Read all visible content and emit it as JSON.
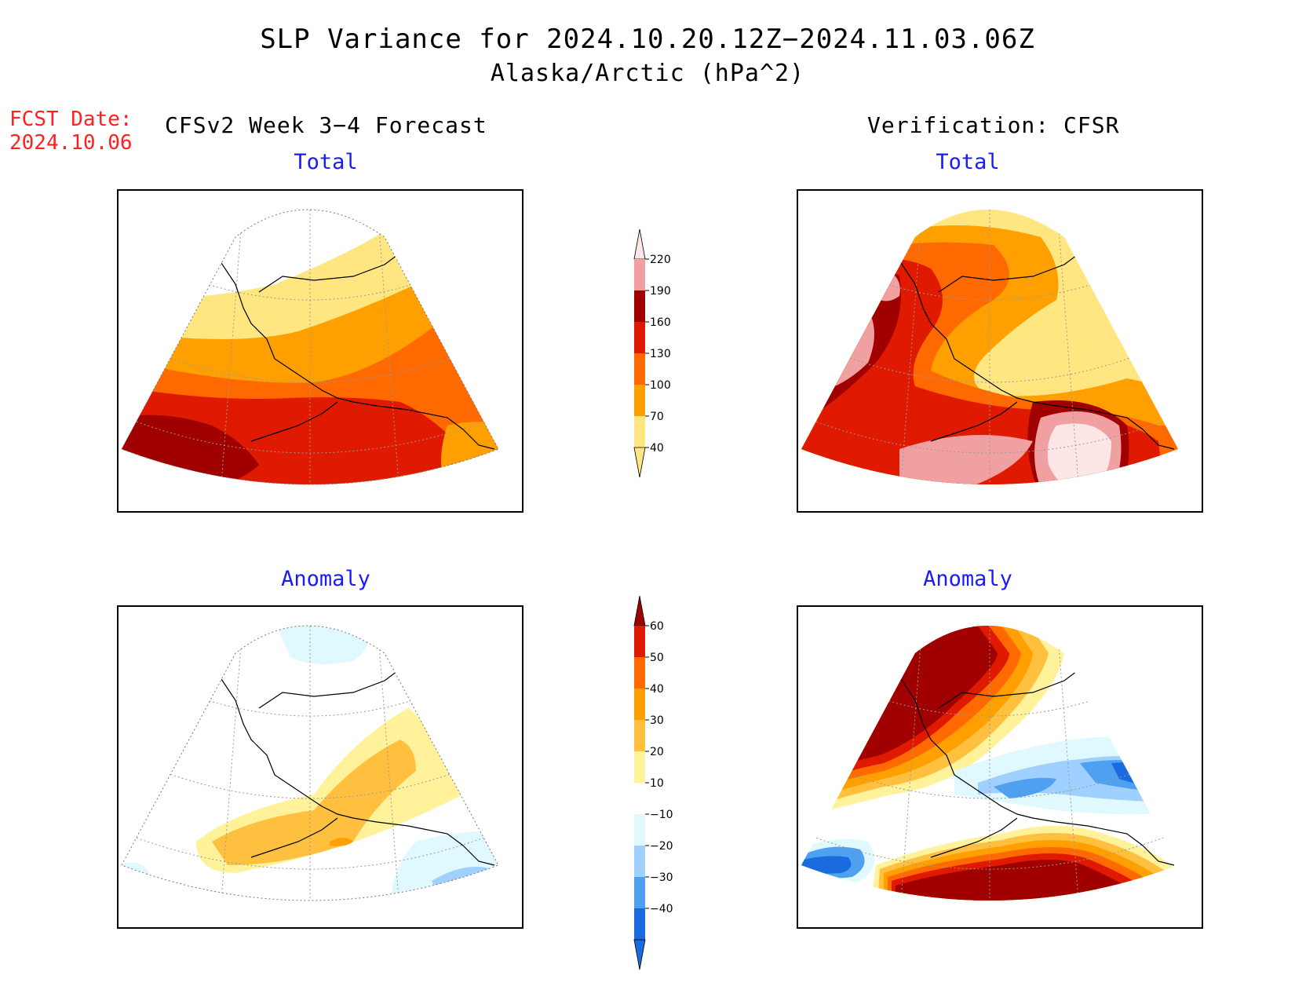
{
  "title": "SLP Variance for 2024.10.20.12Z−2024.11.03.06Z",
  "subtitle": "Alaska/Arctic (hPa^2)",
  "fcst": {
    "label": "FCST Date:",
    "date": "2024.10.06"
  },
  "columns": {
    "left": "CFSv2 Week 3−4 Forecast",
    "right": "Verification: CFSR"
  },
  "panels": {
    "forecast_total": {
      "title": "Total"
    },
    "verification_total": {
      "title": "Total"
    },
    "forecast_anomaly": {
      "title": "Anomaly"
    },
    "verification_anomaly": {
      "title": "Anomaly"
    }
  },
  "colorbars": {
    "total": {
      "levels": [
        "220",
        "190",
        "160",
        "130",
        "100",
        "70",
        "40"
      ],
      "colors": [
        "#fde6e6",
        "#f0a0a0",
        "#a00000",
        "#e01a00",
        "#ff6a00",
        "#ffa000",
        "#ffe680"
      ]
    },
    "anomaly": {
      "levels": [
        "60",
        "50",
        "40",
        "30",
        "20",
        "10",
        "−10",
        "−20",
        "−30",
        "−40"
      ],
      "colors": [
        "#a00000",
        "#e01a00",
        "#ff6a00",
        "#ffa000",
        "#ffc040",
        "#fff29a",
        "#ffffff",
        "#e0f8ff",
        "#a0d0ff",
        "#50a0f0",
        "#1a6ae0"
      ]
    }
  },
  "colors": {
    "fcst_red": "#ff2020",
    "panel_title_blue": "#1a1aff"
  }
}
